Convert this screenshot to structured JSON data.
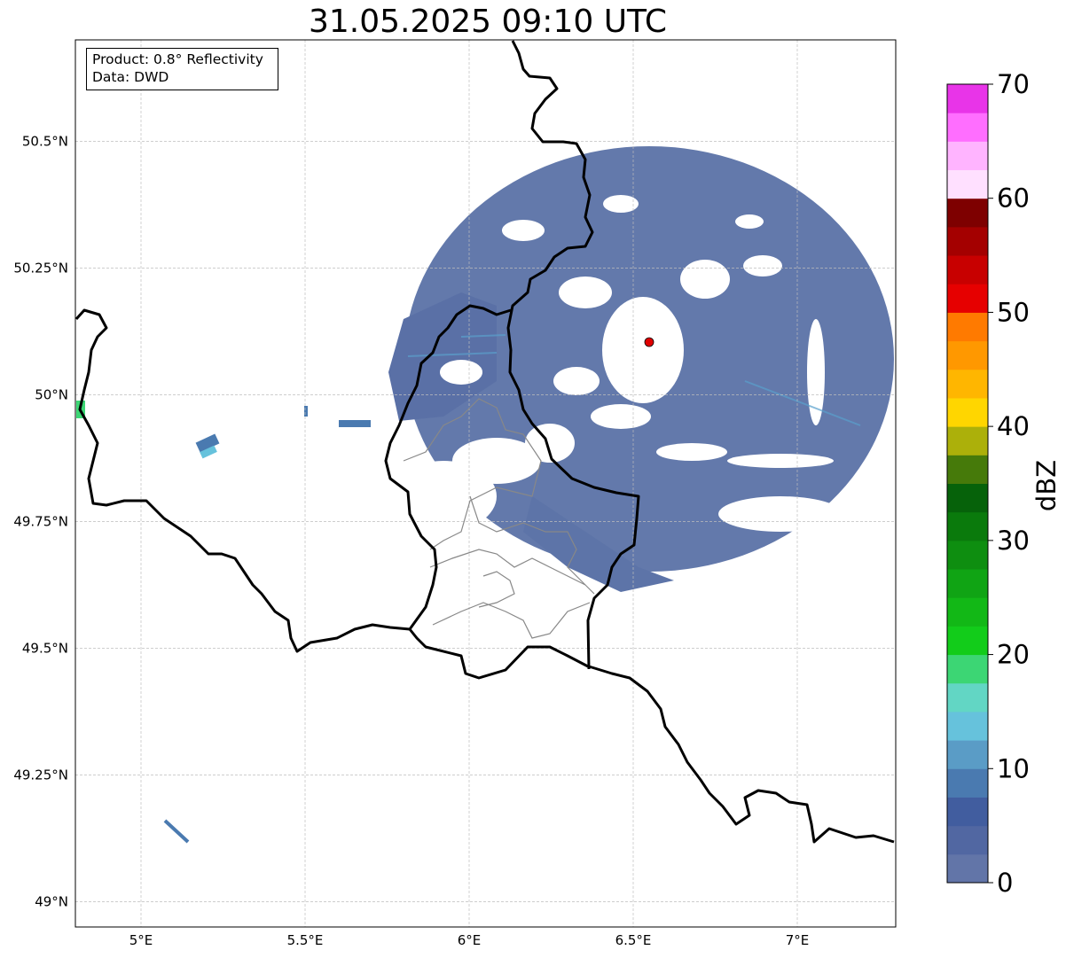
{
  "title": "31.05.2025 09:10 UTC",
  "info_box": {
    "product_line": "Product: 0.8° Reflectivity",
    "data_line": "Data: DWD"
  },
  "map": {
    "x_ticks": [
      {
        "lon": 5.0,
        "label": "5°E"
      },
      {
        "lon": 5.5,
        "label": "5.5°E"
      },
      {
        "lon": 6.0,
        "label": "6°E"
      },
      {
        "lon": 6.5,
        "label": "6.5°E"
      },
      {
        "lon": 7.0,
        "label": "7°E"
      }
    ],
    "y_ticks": [
      {
        "lat": 50.5,
        "label": "50.5°N"
      },
      {
        "lat": 50.25,
        "label": "50.25°N"
      },
      {
        "lat": 50.0,
        "label": "50°N"
      },
      {
        "lat": 49.75,
        "label": "49.75°N"
      },
      {
        "lat": 49.5,
        "label": "49.5°N"
      },
      {
        "lat": 49.25,
        "label": "49.25°N"
      },
      {
        "lat": 49.0,
        "label": "49°N"
      }
    ],
    "lon_range": [
      4.8,
      7.3
    ],
    "lat_range": [
      48.95,
      50.7
    ],
    "gridlines": true,
    "radar_site": {
      "lon": 6.55,
      "lat": 50.11,
      "color": "#e00000"
    }
  },
  "colorbar": {
    "label": "dBZ",
    "min": 0,
    "max": 70,
    "ticks": [
      {
        "value": 0,
        "label": "0"
      },
      {
        "value": 10,
        "label": "10"
      },
      {
        "value": 20,
        "label": "20"
      },
      {
        "value": 30,
        "label": "30"
      },
      {
        "value": 40,
        "label": "40"
      },
      {
        "value": 50,
        "label": "50"
      },
      {
        "value": 60,
        "label": "60"
      },
      {
        "value": 70,
        "label": "70"
      }
    ],
    "colors": [
      "#6275a8",
      "#5167a2",
      "#415d9f",
      "#4a7ab0",
      "#5a9cc6",
      "#66c2dc",
      "#62d6c4",
      "#3cd674",
      "#12cc1a",
      "#12b816",
      "#10a414",
      "#0e8e10",
      "#0a7a0c",
      "#06620a",
      "#467a0a",
      "#acb00a",
      "#ffd600",
      "#ffb600",
      "#ff9800",
      "#ff7a00",
      "#e60000",
      "#c80000",
      "#a40000",
      "#7e0000",
      "#ffe0ff",
      "#ffb4ff",
      "#ff6eff",
      "#e834e8"
    ]
  }
}
